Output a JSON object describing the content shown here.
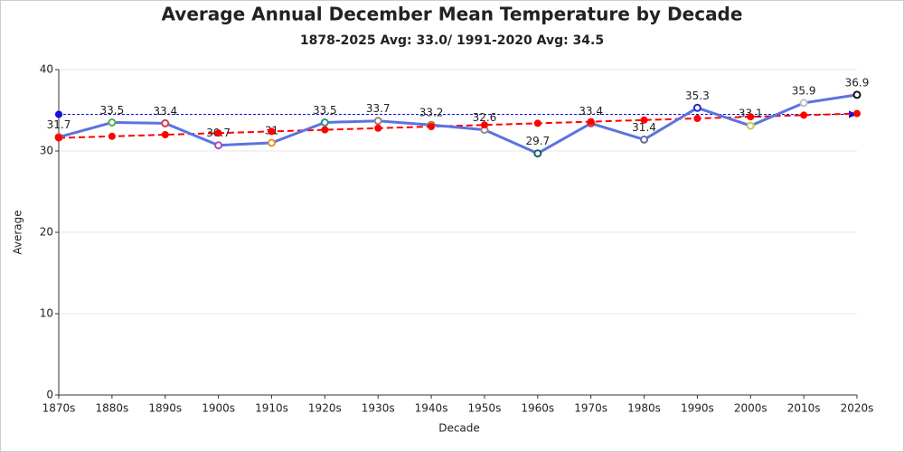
{
  "chart_data": {
    "type": "line",
    "title": "Average Annual December Mean Temperature by Decade",
    "subtitle": "1878-2025 Avg: 33.0/ 1991-2020 Avg: 34.5",
    "x_label": "Decade",
    "y_label": "Average",
    "categories": [
      "1870s",
      "1880s",
      "1890s",
      "1900s",
      "1910s",
      "1920s",
      "1930s",
      "1940s",
      "1950s",
      "1960s",
      "1970s",
      "1980s",
      "1990s",
      "2000s",
      "2010s",
      "2020s"
    ],
    "values": [
      31.7,
      33.5,
      33.4,
      30.7,
      31,
      33.5,
      33.7,
      33.2,
      32.6,
      29.7,
      33.4,
      31.4,
      35.3,
      33.1,
      35.9,
      36.9
    ],
    "color": "#5b73e0",
    "point_colors": [
      "#d04050",
      "#4caf50",
      "#d04050",
      "#a050c0",
      "#e09030",
      "#309090",
      "#a08070",
      "#8a8a40",
      "#909090",
      "#206060",
      "#c04040",
      "#6a6aa0",
      "#1a2ad0",
      "#c8c850",
      "#c0c0c0",
      "#111111"
    ],
    "trend_values": [
      31.6,
      31.8,
      32.0,
      32.2,
      32.4,
      32.6,
      32.8,
      33.0,
      33.2,
      33.4,
      33.6,
      33.8,
      34.0,
      34.2,
      34.4,
      34.6
    ],
    "trend_color": "#ff0000",
    "reference_value": 34.5,
    "reference_color": "#1010e0",
    "ylim": [
      0,
      40
    ],
    "yticks": [
      0,
      10,
      20,
      30,
      40
    ],
    "grid": true
  }
}
